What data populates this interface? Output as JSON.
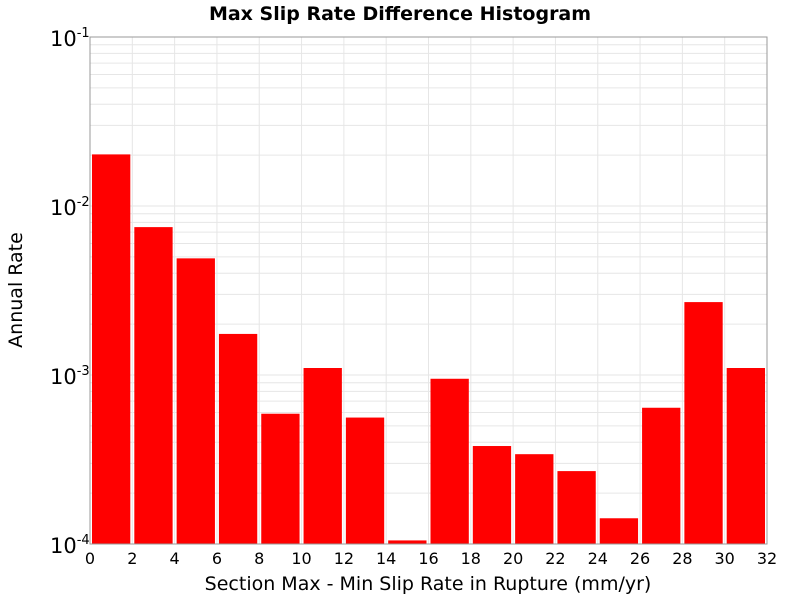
{
  "chart_data": {
    "type": "bar",
    "title": "Max Slip Rate Difference Histogram",
    "xlabel": "Section Max - Min Slip Rate in Rupture (mm/yr)",
    "ylabel": "Annual Rate",
    "x_bin_starts": [
      0,
      2,
      4,
      6,
      8,
      10,
      12,
      14,
      16,
      18,
      20,
      22,
      24,
      26,
      28,
      30
    ],
    "bin_width": 2,
    "values": [
      0.0202,
      0.0075,
      0.0049,
      0.00175,
      0.00059,
      0.0011,
      0.00056,
      0.000105,
      0.00095,
      0.00038,
      0.00034,
      0.00027,
      0.000142,
      0.00064,
      0.0027,
      0.0011
    ],
    "xlim": [
      0,
      32
    ],
    "ylim": [
      0.0001,
      0.1
    ],
    "yscale": "log",
    "xticks": [
      "0",
      "2",
      "4",
      "6",
      "8",
      "10",
      "12",
      "14",
      "16",
      "18",
      "20",
      "22",
      "24",
      "26",
      "28",
      "30",
      "32"
    ],
    "yticks": [
      {
        "base": "10",
        "exp": "-4",
        "value": 0.0001
      },
      {
        "base": "10",
        "exp": "-3",
        "value": 0.001
      },
      {
        "base": "10",
        "exp": "-2",
        "value": 0.01
      },
      {
        "base": "10",
        "exp": "-1",
        "value": 0.1
      }
    ],
    "grid": true,
    "bar_color": "#ff0000",
    "grid_color": "#e6e6e6",
    "legend": "none"
  }
}
